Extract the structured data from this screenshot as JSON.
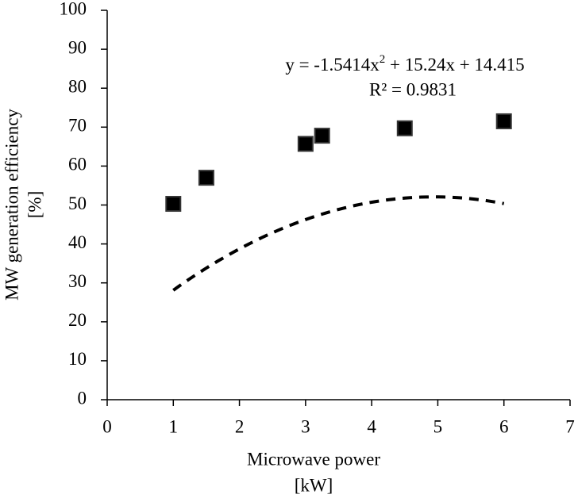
{
  "chart_data": {
    "type": "scatter",
    "x_label": [
      "Microwave power",
      "[kW]"
    ],
    "y_label": [
      "MW generation efficiency",
      "[%]"
    ],
    "x": [
      1,
      1.5,
      3,
      3.25,
      4.5,
      6
    ],
    "values": [
      50.3,
      57,
      65.7,
      67.8,
      69.7,
      71.5
    ],
    "color": "#000000",
    "xlim": [
      0,
      7
    ],
    "xticks": [
      0,
      1,
      2,
      3,
      4,
      5,
      6,
      7
    ],
    "ylim": [
      0,
      100
    ],
    "yticks": [
      0,
      10,
      20,
      30,
      40,
      50,
      60,
      70,
      80,
      90,
      100
    ],
    "grid": false,
    "trendline": {
      "kind": "polynomial",
      "coefficients": [
        -1.5414,
        15.24,
        14.415
      ],
      "equation_parts": [
        "y = -1.5414x",
        "2",
        " + 15.24x + 14.415"
      ],
      "r2_label": "R² = 0.9831"
    }
  }
}
